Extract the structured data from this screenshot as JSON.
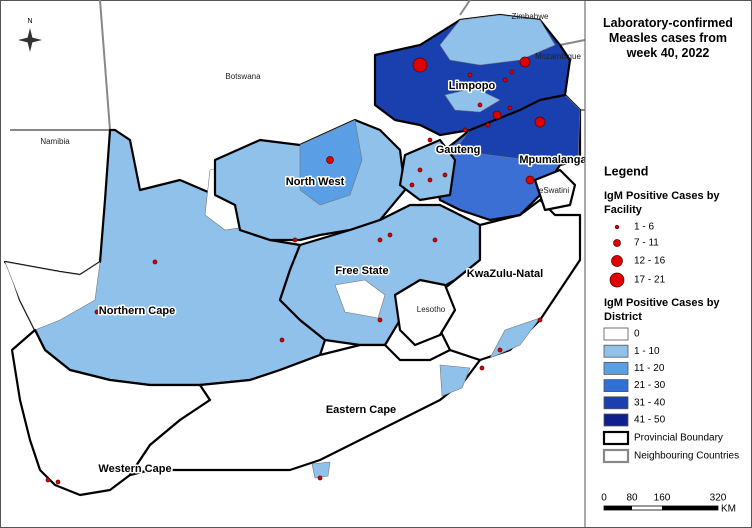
{
  "title": "Laboratory-confirmed Measles cases from week 40, 2022",
  "compass": "N",
  "countries": [
    "Zimbabwe",
    "Mozambique",
    "Botswana",
    "Namibia",
    "Lesotho",
    "eSwatini"
  ],
  "provinces": [
    "Limpopo",
    "Gauteng",
    "Mpumalanga",
    "North West",
    "Free State",
    "KwaZulu-Natal",
    "Northern Cape",
    "Eastern Cape",
    "Western Cape"
  ],
  "legend": {
    "title": "Legend",
    "facility_heading": "IgM Positive Cases by Facility",
    "facility_items": [
      "1 - 6",
      "7 - 11",
      "12 - 16",
      "17 - 21"
    ],
    "district_heading": "IgM Positive Cases by District",
    "district_items": [
      {
        "label": "0",
        "color": "#ffffff"
      },
      {
        "label": "1 - 10",
        "color": "#8fc1ea"
      },
      {
        "label": "11 - 20",
        "color": "#5a9ee6"
      },
      {
        "label": "21 - 30",
        "color": "#2f6fd6"
      },
      {
        "label": "31 - 40",
        "color": "#1a3fae"
      },
      {
        "label": "41 - 50",
        "color": "#0f1f8c"
      }
    ],
    "boundary_items": [
      "Provincial Boundary",
      "Neighbouring Countries"
    ]
  },
  "scale_bar": {
    "ticks": [
      "0",
      "80",
      "160",
      "320"
    ],
    "unit": "KM"
  }
}
